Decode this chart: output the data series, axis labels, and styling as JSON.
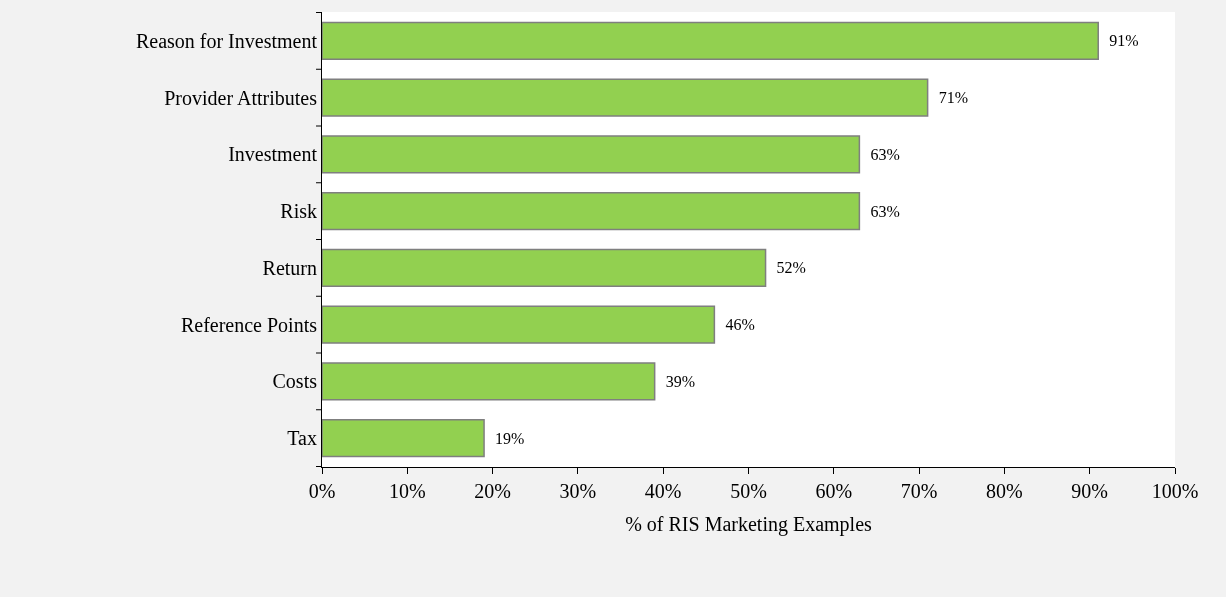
{
  "chart_data": {
    "type": "bar",
    "orientation": "horizontal",
    "xlabel": "% of RIS Marketing Examples",
    "categories": [
      "Reason for Investment",
      "Provider Attributes",
      "Investment",
      "Risk",
      "Return",
      "Reference Points",
      "Costs",
      "Tax"
    ],
    "values": [
      91,
      71,
      63,
      63,
      52,
      46,
      39,
      19
    ],
    "value_labels": [
      "91%",
      "71%",
      "63%",
      "63%",
      "52%",
      "46%",
      "39%",
      "19%"
    ],
    "color": "#92d050",
    "xlim": [
      0,
      100
    ],
    "xticks": [
      {
        "value": 0,
        "label": "0%"
      },
      {
        "value": 10,
        "label": "10%"
      },
      {
        "value": 20,
        "label": "20%"
      },
      {
        "value": 30,
        "label": "30%"
      },
      {
        "value": 40,
        "label": "40%"
      },
      {
        "value": 50,
        "label": "50%"
      },
      {
        "value": 60,
        "label": "60%"
      },
      {
        "value": 70,
        "label": "70%"
      },
      {
        "value": 80,
        "label": "80%"
      },
      {
        "value": 90,
        "label": "90%"
      },
      {
        "value": 100,
        "label": "100%"
      }
    ],
    "legend": false
  }
}
